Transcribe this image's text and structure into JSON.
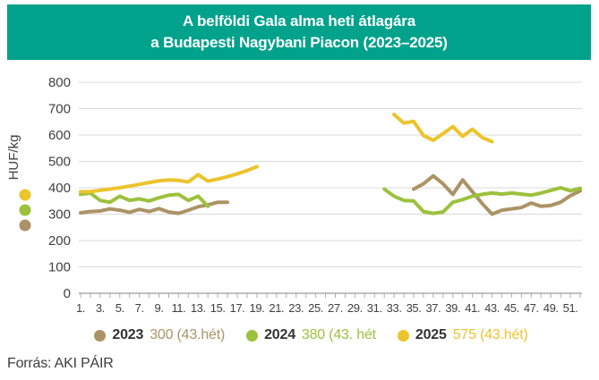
{
  "header": {
    "title_line1": "A belföldi Gala alma heti átlagára",
    "title_line2": "a Budapesti Nagybani Piacon (2023–2025)"
  },
  "footer": {
    "source": "Forrás: AKI PÁIR"
  },
  "colors": {
    "header_bg": "#01A28B",
    "title_text": "#FFFFFF",
    "grid": "#D9D9D9",
    "axis": "#9C9C9C",
    "tick": "#ABABAB",
    "text": "#404040"
  },
  "chart_data": {
    "type": "line",
    "title": "A belföldi Gala alma heti átlagára a Budapesti Nagybani Piacon (2023–2025)",
    "ylabel": "HUF/kg",
    "xlabel": "",
    "ylim": [
      0,
      800
    ],
    "ytick_step": 100,
    "x_range": [
      1,
      52
    ],
    "x_tick_labels": [
      "1.",
      "3.",
      "5.",
      "7.",
      "9.",
      "11.",
      "13.",
      "15.",
      "17.",
      "19.",
      "21.",
      "23.",
      "25.",
      "27.",
      "29.",
      "31.",
      "33.",
      "35.",
      "37.",
      "39.",
      "41.",
      "43.",
      "45.",
      "47.",
      "49.",
      "51."
    ],
    "grid": true,
    "legend_position": "bottom",
    "series": [
      {
        "name": "2023",
        "color": "#AC9365",
        "legend_value": "300 (43.hét)",
        "segments": [
          {
            "start_week": 1,
            "values": [
              305,
              310,
              312,
              320,
              315,
              307,
              318,
              310,
              321,
              308,
              303,
              315,
              328,
              335,
              345,
              345
            ]
          },
          {
            "start_week": 35,
            "values": [
              395,
              415,
              445,
              415,
              375,
              430,
              385,
              340,
              300,
              315,
              320,
              325,
              342,
              330,
              333,
              345,
              370,
              388
            ]
          }
        ]
      },
      {
        "name": "2024",
        "color": "#9CC13D",
        "legend_value": "380 (43. hét",
        "segments": [
          {
            "start_week": 1,
            "values": [
              375,
              380,
              352,
              345,
              368,
              352,
              358,
              350,
              362,
              372,
              375,
              352,
              368,
              330
            ]
          },
          {
            "start_week": 32,
            "values": [
              395,
              368,
              352,
              350,
              310,
              303,
              308,
              345,
              355,
              368,
              375,
              380,
              376,
              380,
              376,
              372,
              380,
              390,
              400,
              388,
              398
            ]
          }
        ]
      },
      {
        "name": "2025",
        "color": "#ECC42C",
        "legend_value": "575 (43.hét)",
        "segments": [
          {
            "start_week": 1,
            "values": [
              385,
              385,
              390,
              395,
              400,
              406,
              413,
              420,
              426,
              430,
              428,
              422,
              450,
              425,
              433,
              442,
              453,
              465,
              480
            ]
          },
          {
            "start_week": 33,
            "values": [
              678,
              645,
              652,
              598,
              580,
              605,
              632,
              595,
              622,
              590,
              575
            ]
          }
        ]
      }
    ]
  }
}
